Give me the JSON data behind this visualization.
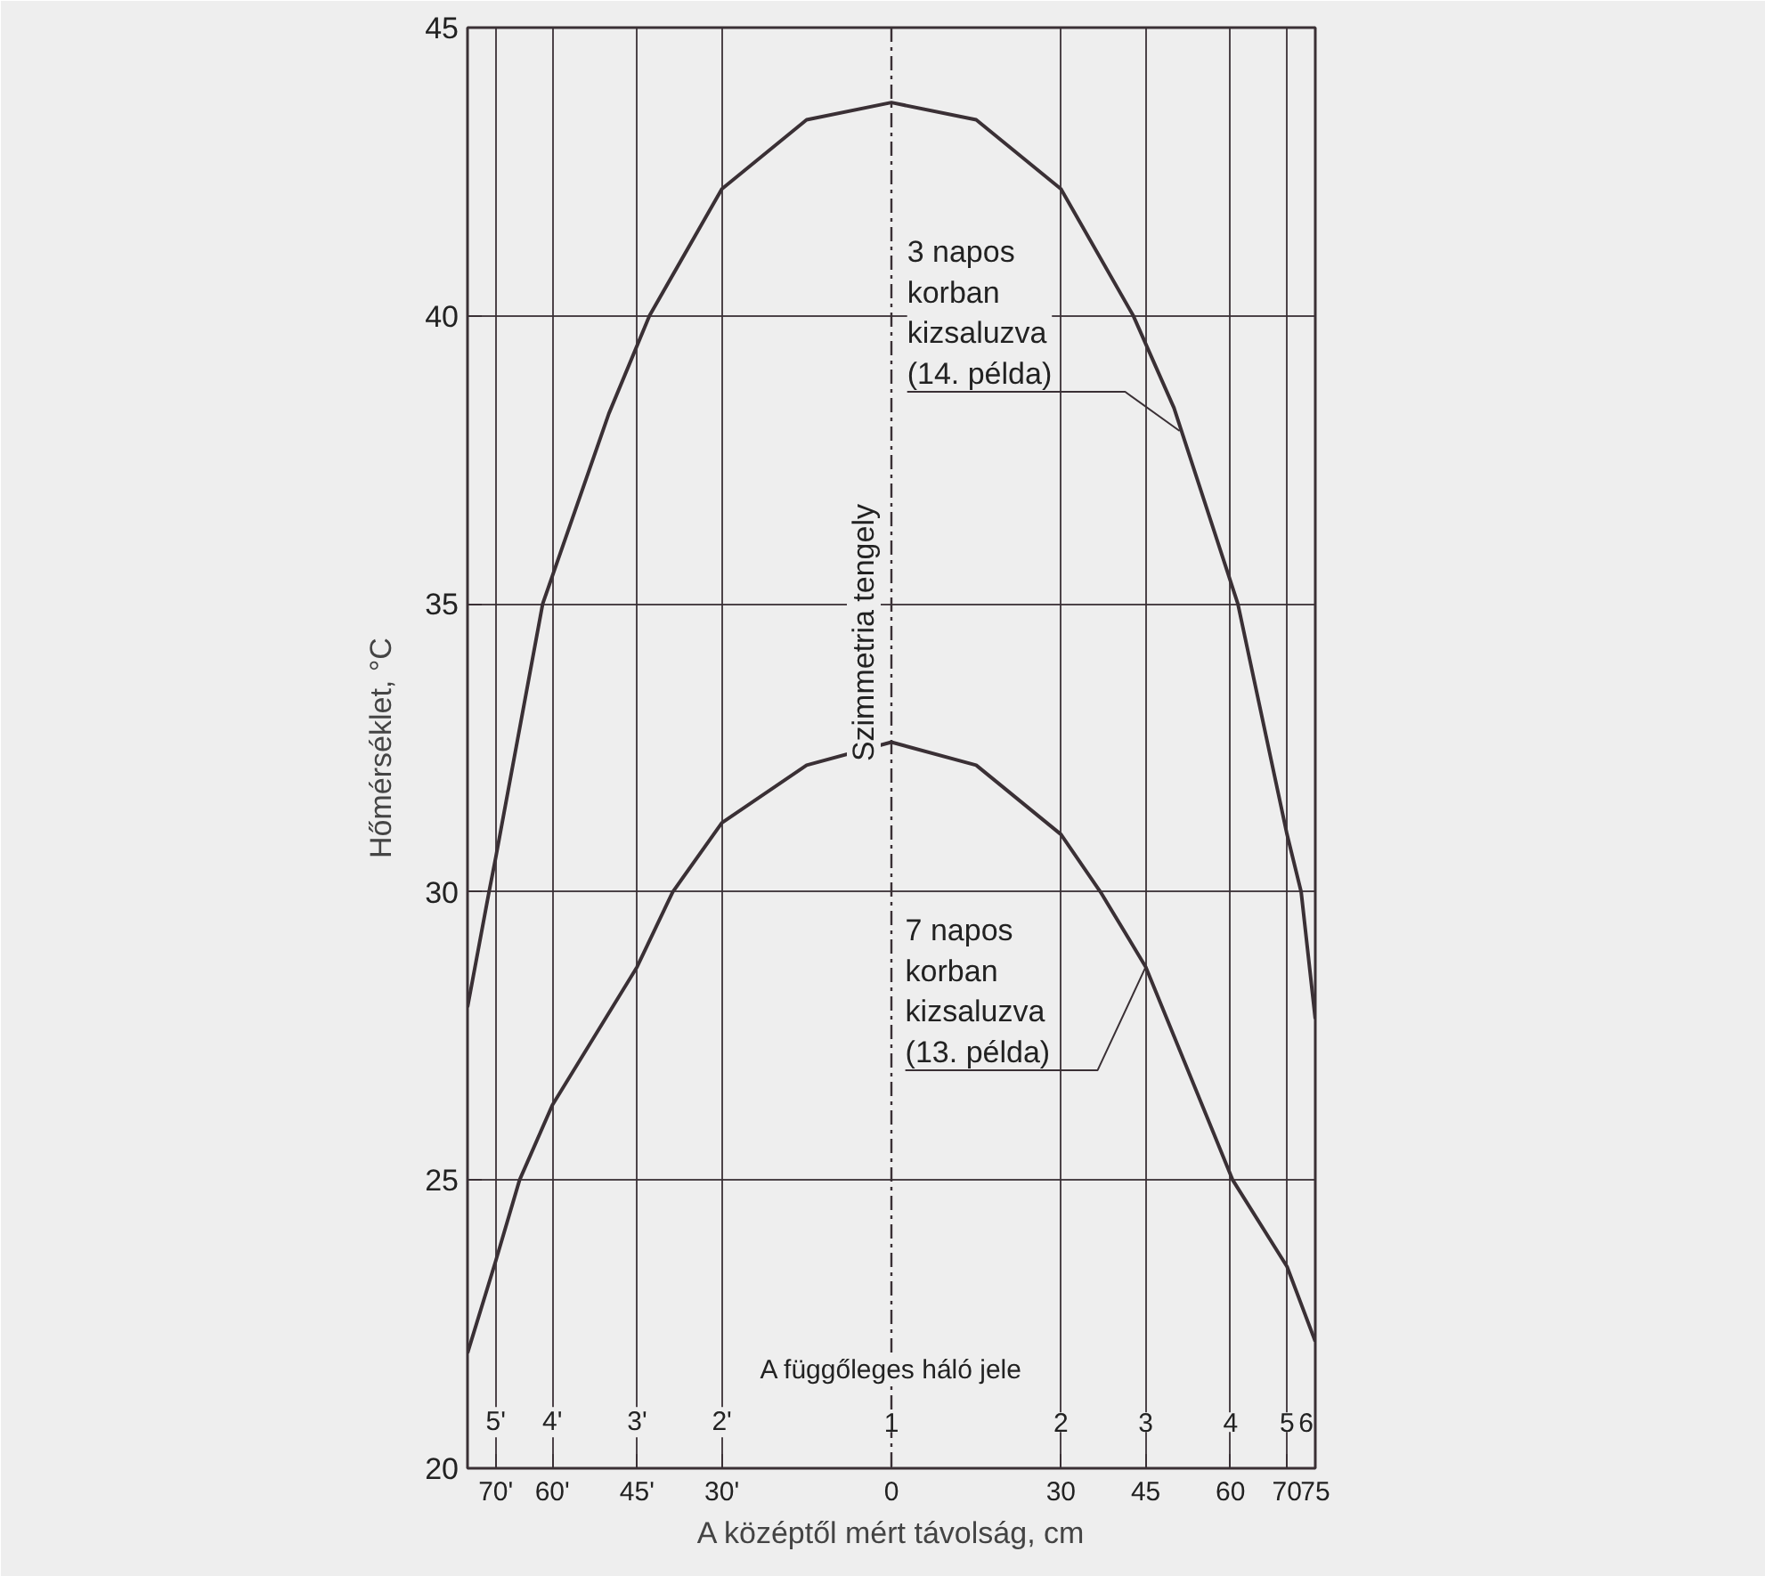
{
  "chart_data": {
    "type": "line",
    "xlabel": "A középtől mért távolság, cm",
    "ylabel": "Hőmérséklet, °C",
    "xlim": [
      -75,
      75
    ],
    "ylim": [
      20,
      45
    ],
    "xticks": [
      {
        "value": -70,
        "label": "70'"
      },
      {
        "value": -60,
        "label": "60'"
      },
      {
        "value": -45,
        "label": "45'"
      },
      {
        "value": -30,
        "label": "30'"
      },
      0,
      30,
      45,
      60,
      70,
      75
    ],
    "yticks": [
      20,
      25,
      30,
      35,
      40,
      45
    ],
    "grid": true,
    "marker": "none",
    "line_style": "solid",
    "series": [
      {
        "color": "#3a3035",
        "x": [
          -75,
          -71.2,
          -70,
          -61.7,
          -50,
          -42.8,
          -30,
          -15,
          0,
          15,
          30,
          42.8,
          50,
          61.3,
          70,
          72.5,
          75
        ],
        "values": [
          28.0,
          30,
          30.6,
          35,
          38.3,
          40,
          42.2,
          43.4,
          43.7,
          43.4,
          42.2,
          40,
          38.4,
          35,
          31.0,
          30,
          27.8
        ]
      },
      {
        "color": "#3a3035",
        "x": [
          -75,
          -70,
          -65.8,
          -60,
          -45,
          -38.7,
          -30,
          -15,
          0,
          15,
          30,
          37,
          45,
          60.4,
          70,
          75
        ],
        "values": [
          22.0,
          23.6,
          25,
          26.3,
          28.7,
          30,
          31.2,
          32.2,
          32.6,
          32.2,
          31.0,
          30,
          28.7,
          25,
          23.5,
          22.2
        ]
      }
    ],
    "ref_lines": [
      {
        "axis": "x",
        "value": 0,
        "label": "Szimmetria tengely",
        "line_style": "dashed",
        "color": "#3a3035"
      }
    ],
    "annotations": [
      {
        "text": "3 napos\nkorban\nkizsaluzva\n(14. példa)",
        "x": 51,
        "y": 38.0
      },
      {
        "text": "7 napos\nkorban\nkizsaluzva\n(13. példa)",
        "x": 45,
        "y": 28.7
      },
      {
        "text": "A függőleges háló jele",
        "x": 0,
        "y": 21.7
      },
      {
        "text": "5'",
        "x": -70,
        "y": 20.8
      },
      {
        "text": "4'",
        "x": -60,
        "y": 20.8
      },
      {
        "text": "3'",
        "x": -45,
        "y": 20.8
      },
      {
        "text": "2'",
        "x": -30,
        "y": 20.8
      },
      {
        "text": "1",
        "x": 0,
        "y": 20.8
      },
      {
        "text": "2",
        "x": 30,
        "y": 20.8
      },
      {
        "text": "3",
        "x": 45,
        "y": 20.8
      },
      {
        "text": "4",
        "x": 60,
        "y": 20.8
      },
      {
        "text": "5",
        "x": 70,
        "y": 20.8
      },
      "6"
    ]
  }
}
